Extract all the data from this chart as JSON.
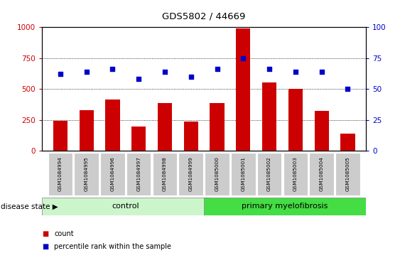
{
  "title": "GDS5802 / 44669",
  "samples": [
    "GSM1084994",
    "GSM1084995",
    "GSM1084996",
    "GSM1084997",
    "GSM1084998",
    "GSM1084999",
    "GSM1085000",
    "GSM1085001",
    "GSM1085002",
    "GSM1085003",
    "GSM1085004",
    "GSM1085005"
  ],
  "counts": [
    245,
    330,
    415,
    200,
    385,
    240,
    385,
    990,
    555,
    500,
    325,
    140
  ],
  "percentiles": [
    62,
    64,
    66,
    58,
    64,
    60,
    66,
    75,
    66,
    64,
    64,
    50
  ],
  "control_count": 6,
  "bar_color": "#cc0000",
  "dot_color": "#0000cc",
  "control_bg": "#ccf5cc",
  "myelo_bg": "#44dd44",
  "tick_bg": "#cccccc",
  "ylim_left": [
    0,
    1000
  ],
  "ylim_right": [
    0,
    100
  ],
  "yticks_left": [
    0,
    250,
    500,
    750,
    1000
  ],
  "yticks_right": [
    0,
    25,
    50,
    75,
    100
  ],
  "disease_label": "disease state",
  "group_labels": [
    "control",
    "primary myelofibrosis"
  ],
  "legend_count_label": "count",
  "legend_percentile_label": "percentile rank within the sample"
}
